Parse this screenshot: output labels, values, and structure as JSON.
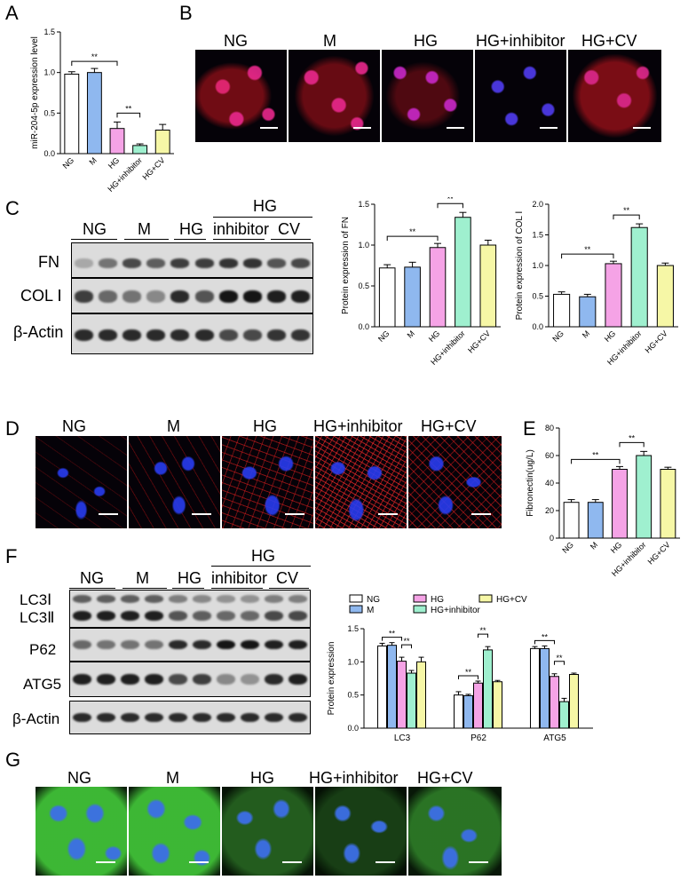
{
  "panels": {
    "A": "A",
    "B": "B",
    "C": "C",
    "D": "D",
    "E": "E",
    "F": "F",
    "G": "G"
  },
  "groups": [
    "NG",
    "M",
    "HG",
    "HG+inhibitor",
    "HG+CV"
  ],
  "blot_groups": {
    "top": "HG",
    "labels": [
      "NG",
      "M",
      "HG",
      "inhibitor",
      "CV"
    ]
  },
  "blot_C_rows": [
    "FN",
    "COL Ⅰ",
    "β-Actin"
  ],
  "blot_F_rows": [
    "LC3Ⅰ",
    "LC3Ⅱ",
    "P62",
    "ATG5",
    "β-Actin"
  ],
  "colors": {
    "NG": "#ffffff",
    "M": "#8fb8ef",
    "HG": "#f5a3e6",
    "HG+inhibitor": "#9ff0cf",
    "HG+CV": "#f6f7a6",
    "red_stain": "#e0242c",
    "blue_stain": "#2a3cf0",
    "green_stain": "#48d23a"
  },
  "chart_data": [
    {
      "id": "A",
      "type": "bar",
      "categories": [
        "NG",
        "M",
        "HG",
        "HG+inhibitor",
        "HG+CV"
      ],
      "values": [
        0.98,
        1.0,
        0.31,
        0.1,
        0.29
      ],
      "errors": [
        0.03,
        0.05,
        0.08,
        0.02,
        0.07
      ],
      "ylabel": "miR-204-5p expression level",
      "ylim": [
        0,
        1.5
      ],
      "yticks": [
        "0.0",
        "0.5",
        "1.0",
        "1.5"
      ],
      "significance": [
        {
          "from": 0,
          "to": 2,
          "label": "**"
        },
        {
          "from": 2,
          "to": 3,
          "label": "**"
        }
      ]
    },
    {
      "id": "C-FN",
      "type": "bar",
      "categories": [
        "NG",
        "M",
        "HG",
        "HG+inhibitor",
        "HG+CV"
      ],
      "values": [
        0.72,
        0.73,
        0.97,
        1.34,
        1.0
      ],
      "errors": [
        0.04,
        0.06,
        0.05,
        0.06,
        0.06
      ],
      "ylabel": "Protein expression of FN",
      "ylim": [
        0,
        1.5
      ],
      "yticks": [
        "0.0",
        "0.5",
        "1.0",
        "1.5"
      ],
      "significance": [
        {
          "from": 0,
          "to": 2,
          "label": "**"
        },
        {
          "from": 2,
          "to": 3,
          "label": "**"
        }
      ]
    },
    {
      "id": "C-COL",
      "type": "bar",
      "categories": [
        "NG",
        "M",
        "HG",
        "HG+inhibitor",
        "HG+CV"
      ],
      "values": [
        0.53,
        0.49,
        1.03,
        1.62,
        1.0
      ],
      "errors": [
        0.04,
        0.04,
        0.04,
        0.06,
        0.04
      ],
      "ylabel": "Protein expression of COL Ⅰ",
      "ylim": [
        0,
        2.0
      ],
      "yticks": [
        "0.0",
        "0.5",
        "1.0",
        "1.5",
        "2.0"
      ],
      "significance": [
        {
          "from": 0,
          "to": 2,
          "label": "**"
        },
        {
          "from": 2,
          "to": 3,
          "label": "**"
        }
      ]
    },
    {
      "id": "E",
      "type": "bar",
      "categories": [
        "NG",
        "M",
        "HG",
        "HG+inhibitor",
        "HG+CV"
      ],
      "values": [
        26,
        26,
        50,
        60,
        50
      ],
      "errors": [
        2,
        2,
        2,
        3,
        1.5
      ],
      "ylabel": "Fibronectin(ug/L)",
      "ylim": [
        0,
        80
      ],
      "yticks": [
        "0",
        "20",
        "40",
        "60",
        "80"
      ],
      "significance": [
        {
          "from": 0,
          "to": 2,
          "label": "**"
        },
        {
          "from": 2,
          "to": 3,
          "label": "**"
        }
      ]
    },
    {
      "id": "F",
      "type": "bar",
      "categories": [
        "LC3",
        "P62",
        "ATG5"
      ],
      "series": [
        {
          "name": "NG",
          "values": [
            1.24,
            0.5,
            1.2
          ],
          "errors": [
            0.04,
            0.05,
            0.03
          ]
        },
        {
          "name": "M",
          "values": [
            1.25,
            0.49,
            1.2
          ],
          "errors": [
            0.04,
            0.02,
            0.04
          ]
        },
        {
          "name": "HG",
          "values": [
            1.01,
            0.68,
            0.78
          ],
          "errors": [
            0.06,
            0.03,
            0.04
          ]
        },
        {
          "name": "HG+inhibitor",
          "values": [
            0.83,
            1.18,
            0.4
          ],
          "errors": [
            0.04,
            0.05,
            0.05
          ]
        },
        {
          "name": "HG+CV",
          "values": [
            1.0,
            0.7,
            0.81
          ],
          "errors": [
            0.07,
            0.02,
            0.02
          ]
        }
      ],
      "ylabel": "Protein expression",
      "ylim": [
        0,
        1.5
      ],
      "yticks": [
        "0.0",
        "0.5",
        "1.0",
        "1.5"
      ],
      "significance": [
        {
          "cat": 0,
          "from": 0,
          "to": 2,
          "label": "**"
        },
        {
          "cat": 0,
          "from": 2,
          "to": 3,
          "label": "**"
        },
        {
          "cat": 1,
          "from": 0,
          "to": 2,
          "label": "**"
        },
        {
          "cat": 1,
          "from": 2,
          "to": 3,
          "label": "**"
        },
        {
          "cat": 2,
          "from": 0,
          "to": 2,
          "label": "**"
        },
        {
          "cat": 2,
          "from": 2,
          "to": 3,
          "label": "**"
        }
      ]
    }
  ]
}
